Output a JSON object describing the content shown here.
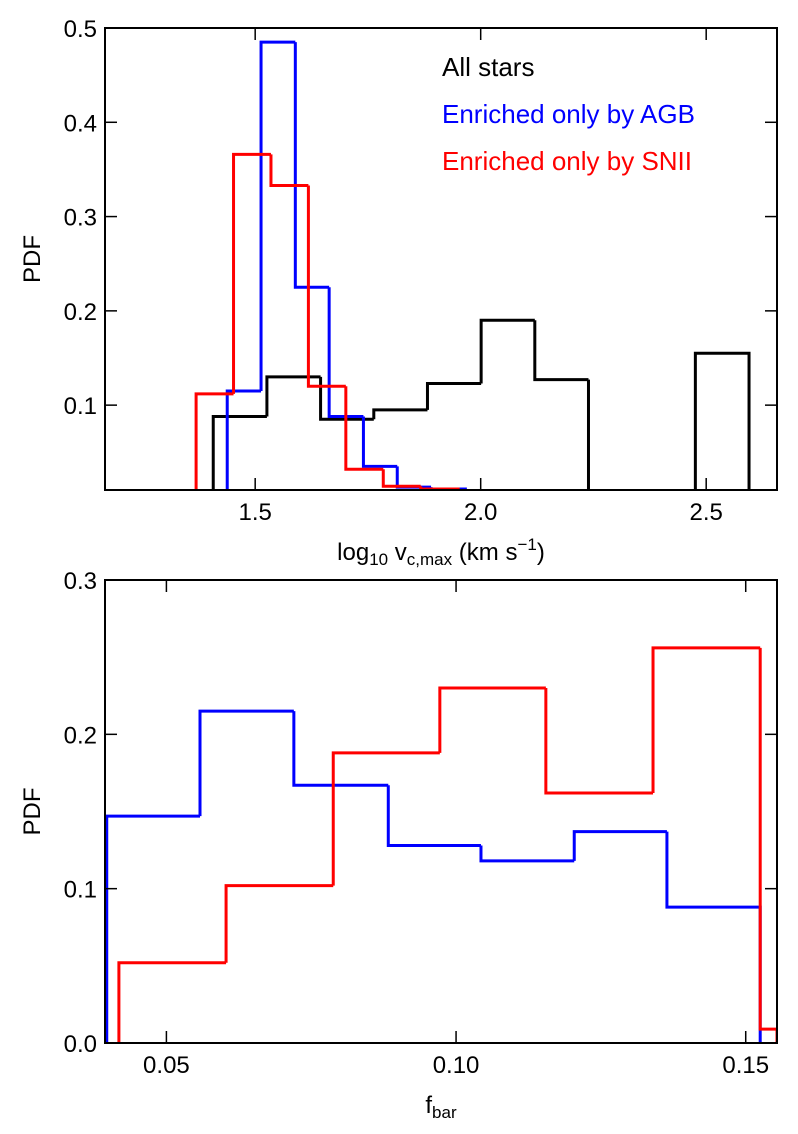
{
  "chart_data": [
    {
      "type": "histogram",
      "xlabel": [
        "log",
        "10",
        " v",
        "c,max",
        " (km s",
        "−1",
        ")"
      ],
      "ylabel": "PDF",
      "xlim": [
        1.167,
        2.657
      ],
      "ylim": [
        0.01,
        0.5
      ],
      "xticks": [
        {
          "value": 1.5,
          "label": "1.5"
        },
        {
          "value": 2.0,
          "label": "2.0"
        },
        {
          "value": 2.5,
          "label": "2.5"
        }
      ],
      "yticks": [
        0.1,
        0.2,
        0.3,
        0.4,
        0.5
      ],
      "legend": "upper right",
      "series": [
        {
          "name": "All stars",
          "color": "#000000",
          "bins": [
            1.407,
            1.526,
            1.645,
            1.763,
            1.882,
            2.001,
            2.12,
            2.239,
            2.358,
            2.476,
            2.595
          ],
          "values": [
            0.088,
            0.13,
            0.085,
            0.095,
            0.123,
            0.19,
            0.127,
            0,
            0,
            0.155
          ]
        },
        {
          "name": "Enriched only by AGB",
          "color": "#0000ff",
          "bins": [
            1.438,
            1.513,
            1.589,
            1.664,
            1.74,
            1.815,
            1.89,
            1.966
          ],
          "values": [
            0.115,
            0.485,
            0.225,
            0.088,
            0.035,
            0.013,
            0.011
          ]
        },
        {
          "name": "Enriched only by SNII",
          "color": "#ff0000",
          "bins": [
            1.369,
            1.452,
            1.535,
            1.618,
            1.701,
            1.784,
            1.867,
            1.95
          ],
          "values": [
            0.112,
            0.366,
            0.333,
            0.12,
            0.032,
            0.014,
            0.011
          ]
        }
      ]
    },
    {
      "type": "histogram",
      "xlabel": [
        "f",
        "bar"
      ],
      "ylabel": "PDF",
      "xlim": [
        0.0394,
        0.1554
      ],
      "ylim": [
        0,
        0.3
      ],
      "xticks": [
        0.05,
        {
          "value": 0.1,
          "label": "0.10"
        },
        0.15
      ],
      "yticks": [
        {
          "value": 0,
          "label": "0.0"
        },
        0.1,
        0.2,
        0.3
      ],
      "series": [
        {
          "color": "#0000ff",
          "bins": [
            0.0397,
            0.0558,
            0.072,
            0.0883,
            0.1043,
            0.1204,
            0.1364,
            0.1525
          ],
          "values": [
            0.147,
            0.215,
            0.167,
            0.128,
            0.118,
            0.137,
            0.088
          ]
        },
        {
          "color": "#ff0000",
          "bins": [
            0.0418,
            0.0603,
            0.0788,
            0.0972,
            0.1155,
            0.134,
            0.1525,
            0.1554
          ],
          "values": [
            0.052,
            0.102,
            0.188,
            0.23,
            0.162,
            0.256,
            0.009
          ]
        }
      ]
    }
  ]
}
